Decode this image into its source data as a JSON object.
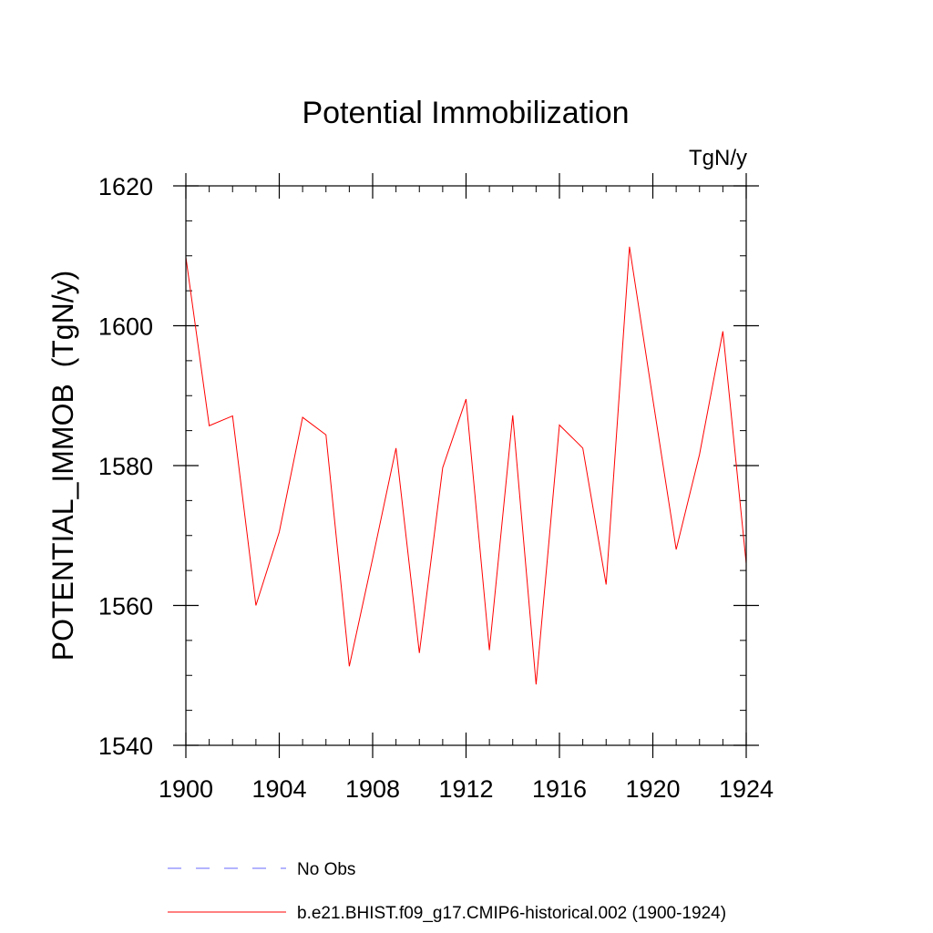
{
  "chart_data": {
    "type": "line",
    "title": "Potential Immobilization",
    "units": "TgN/y",
    "ylabel": "POTENTIAL_IMMOB  (TgN/y)",
    "xlabel": "",
    "xlim": [
      1900,
      1924
    ],
    "ylim": [
      1540,
      1620
    ],
    "x_ticks": [
      1900,
      1904,
      1908,
      1912,
      1916,
      1920,
      1924
    ],
    "x_tick_labels": [
      "1900",
      "1904",
      "1908",
      "1912",
      "1916",
      "1920",
      "1924"
    ],
    "y_ticks": [
      1540,
      1560,
      1580,
      1600,
      1620
    ],
    "y_tick_labels": [
      "1540",
      "1560",
      "1580",
      "1600",
      "1620"
    ],
    "x_minor_step": 1,
    "y_minor_step": 5,
    "grid": false,
    "series": [
      {
        "name": "b.e21.BHIST.f09_g17.CMIP6-historical.002 (1900-1924)",
        "color": "#ff0000",
        "x": [
          1900,
          1901,
          1902,
          1903,
          1904,
          1905,
          1906,
          1907,
          1908,
          1909,
          1910,
          1911,
          1912,
          1913,
          1914,
          1915,
          1916,
          1917,
          1918,
          1919,
          1920,
          1921,
          1922,
          1923,
          1924
        ],
        "values": [
          1609.8,
          1585.7,
          1587.1,
          1560.0,
          1570.5,
          1586.9,
          1584.4,
          1551.3,
          1566.7,
          1582.5,
          1553.2,
          1579.7,
          1589.5,
          1553.6,
          1587.2,
          1548.7,
          1585.8,
          1582.5,
          1563.0,
          1611.3,
          1589.5,
          1568.0,
          1581.6,
          1599.2,
          1566.0
        ]
      }
    ],
    "legend": [
      {
        "label": "No Obs",
        "color": "#6a6aff",
        "style": "dashed"
      },
      {
        "label": "b.e21.BHIST.f09_g17.CMIP6-historical.002 (1900-1924)",
        "color": "#ff0000",
        "style": "solid"
      }
    ],
    "legend_placement": "bottom"
  }
}
